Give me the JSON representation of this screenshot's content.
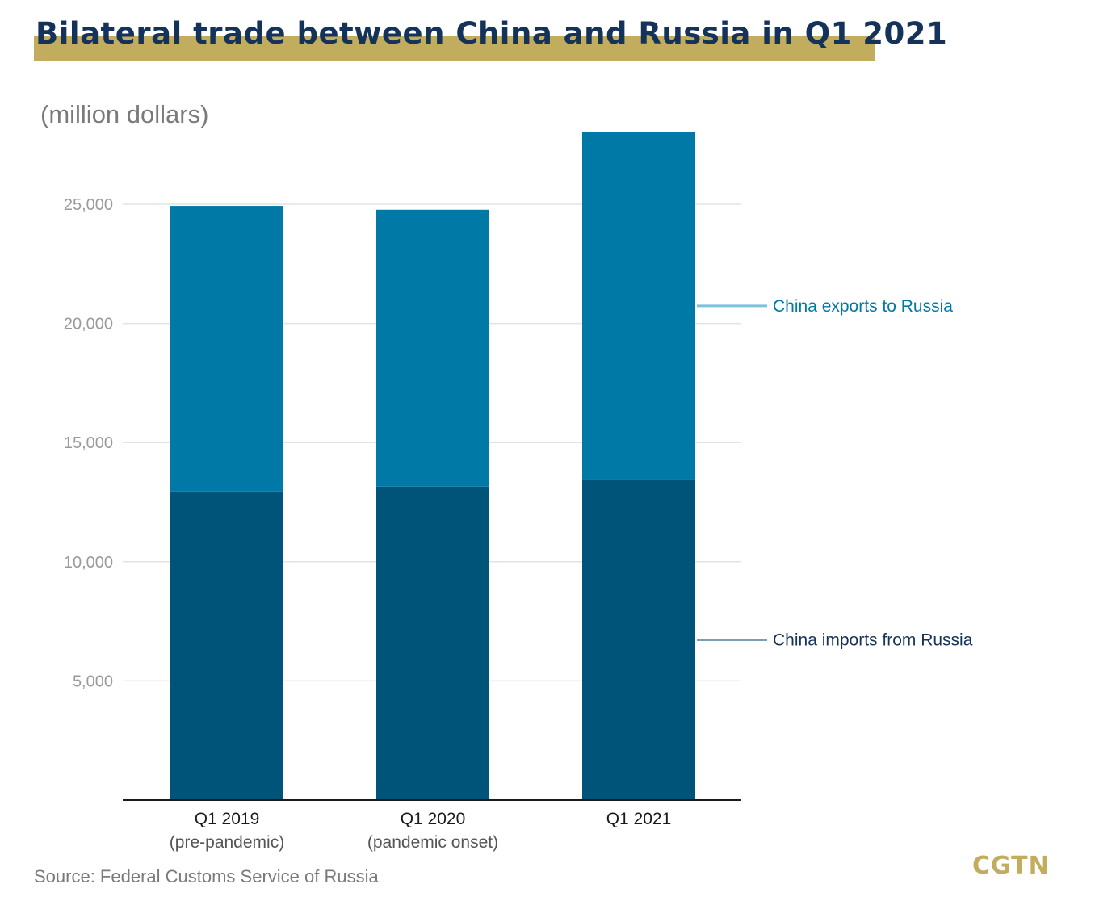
{
  "header": {
    "title": "Bilateral trade between China and Russia in Q1 2021",
    "unit": "(million dollars)"
  },
  "footer": {
    "source": "Source: Federal Customs Service of Russia",
    "logo": "CGTN"
  },
  "colors": {
    "exports": "#0079a6",
    "imports": "#00547a",
    "accent": "#c2ad5f",
    "title": "#15335a"
  },
  "chart_data": {
    "type": "bar",
    "stacked": true,
    "categories": [
      "Q1 2019",
      "Q1 2020",
      "Q1 2021"
    ],
    "category_notes": [
      "(pre-pandemic)",
      "(pandemic onset)",
      ""
    ],
    "series": [
      {
        "name": "China imports from Russia",
        "values": [
          12950,
          13150,
          13450
        ],
        "color": "#00547a"
      },
      {
        "name": "China exports to Russia",
        "values": [
          11980,
          11620,
          14570
        ],
        "color": "#0079a6"
      }
    ],
    "y_ticks": [
      "5,000",
      "10,000",
      "15,000",
      "20,000",
      "25,000"
    ],
    "y_tick_values": [
      5000,
      10000,
      15000,
      20000,
      25000
    ],
    "ylim": [
      0,
      28000
    ],
    "ylabel": "(million dollars)",
    "grid": true,
    "legend": "right-inline"
  }
}
